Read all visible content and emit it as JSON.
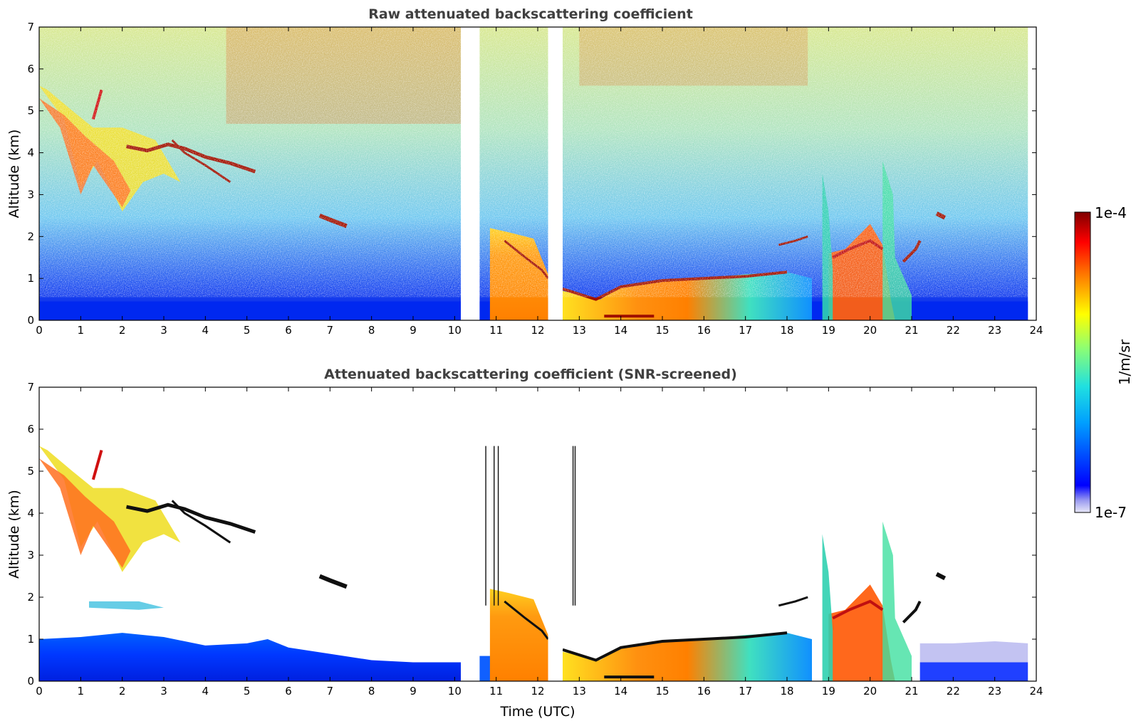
{
  "chart_data": [
    {
      "type": "heatmap",
      "title": "Raw attenuated backscattering coefficient",
      "xlabel": "",
      "ylabel": "Altitude (km)",
      "xlim": [
        0,
        24
      ],
      "ylim": [
        0,
        7
      ],
      "x_ticks": [
        0,
        1,
        2,
        3,
        4,
        5,
        6,
        7,
        8,
        9,
        10,
        11,
        12,
        13,
        14,
        15,
        16,
        17,
        18,
        19,
        20,
        21,
        22,
        23,
        24
      ],
      "y_ticks": [
        0,
        1,
        2,
        3,
        4,
        5,
        6,
        7
      ],
      "data_gaps_utc": [
        [
          10.15,
          10.6
        ],
        [
          12.25,
          12.6
        ]
      ],
      "data_end_utc": 23.8
    },
    {
      "type": "heatmap",
      "title": "Attenuated backscattering coefficient (SNR-screened)",
      "xlabel": "Time (UTC)",
      "ylabel": "Altitude (km)",
      "xlim": [
        0,
        24
      ],
      "ylim": [
        0,
        7
      ],
      "x_ticks": [
        0,
        1,
        2,
        3,
        4,
        5,
        6,
        7,
        8,
        9,
        10,
        11,
        12,
        13,
        14,
        15,
        16,
        17,
        18,
        19,
        20,
        21,
        22,
        23,
        24
      ],
      "y_ticks": [
        0,
        1,
        2,
        3,
        4,
        5,
        6,
        7
      ],
      "data_gaps_utc": [
        [
          10.15,
          10.6
        ],
        [
          12.25,
          12.6
        ]
      ],
      "data_end_utc": 23.8
    }
  ],
  "colorbar": {
    "label": "1/m/sr",
    "max_label": "1e-4",
    "min_label": "1e-7",
    "scale": "log",
    "range": [
      1e-07,
      0.0001
    ]
  }
}
